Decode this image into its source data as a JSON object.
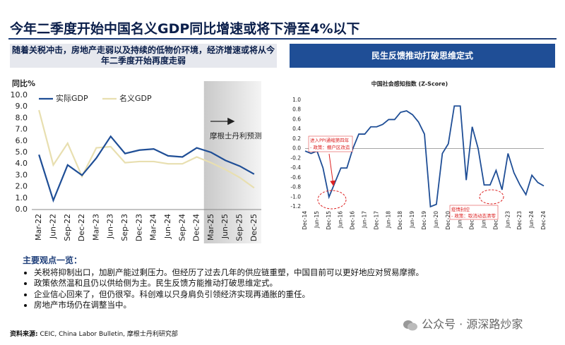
{
  "header": {
    "title": "今年二季度开始中国名义GDP同比增速或将下滑至4%以下"
  },
  "panels": {
    "left": "随着关税冲击，房地产走弱以及持续的低物价环境，经济增速或将从今年二季度开始再度走弱",
    "right": "民生反馈推动打破思维定式"
  },
  "chart_data": [
    {
      "type": "line",
      "ylabel": "同比%",
      "categories": [
        "Mar-22",
        "Jun-22",
        "Sep-22",
        "Dec-22",
        "Mar-23",
        "Jun-23",
        "Sep-23",
        "Dec-23",
        "Mar-24",
        "Jun-24",
        "Sep-24",
        "Dec-24",
        "Mar-25",
        "Jun-25",
        "Sep-25",
        "Dec-25"
      ],
      "series": [
        {
          "name": "实际GDP",
          "color": "#1f4e96",
          "values": [
            4.8,
            0.8,
            3.9,
            3.0,
            4.5,
            6.4,
            4.9,
            5.2,
            5.3,
            4.7,
            4.6,
            5.4,
            5.0,
            4.3,
            3.8,
            3.1
          ]
        },
        {
          "name": "名义GDP",
          "color": "#e8dfb0",
          "values": [
            8.7,
            3.9,
            5.8,
            2.9,
            5.4,
            5.5,
            4.1,
            4.2,
            4.2,
            4.0,
            4.0,
            4.6,
            4.1,
            3.5,
            2.8,
            1.9
          ]
        }
      ],
      "ylim": [
        0,
        10
      ],
      "yticks": [
        {
          "value": 0,
          "label": "0.0"
        },
        {
          "value": 1,
          "label": "1.0"
        },
        {
          "value": 2,
          "label": "2.0"
        },
        {
          "value": 3,
          "label": "3.0"
        },
        {
          "value": 4,
          "label": "4.0"
        },
        {
          "value": 5,
          "label": "5.0"
        },
        {
          "value": 6,
          "label": "6.0"
        },
        {
          "value": 7,
          "label": "7.0"
        },
        {
          "value": 8,
          "label": "8.0"
        },
        {
          "value": 9,
          "label": "9.0"
        },
        {
          "value": 10,
          "label": "10.0"
        }
      ],
      "shaded_from": "Mar-25",
      "annotations": [
        "摩根士丹利预测"
      ],
      "legend": "top-left"
    },
    {
      "type": "line",
      "title": "中国社会感知指数 (Z-Score)",
      "categories": [
        "Dec-14",
        null,
        "Jun-15",
        null,
        "Dec-15",
        null,
        "Jun-16",
        null,
        "Dec-16",
        null,
        "Jun-17",
        null,
        "Dec-17",
        null,
        "Jun-18",
        null,
        "Dec-18",
        null,
        "Jun-19",
        null,
        "Dec-19",
        null,
        "Jun-20",
        null,
        "Dec-20",
        null,
        "Jun-21",
        null,
        "Dec-21",
        null,
        "Jun-22",
        null,
        "Dec-22",
        null,
        "Jun-23",
        null,
        "Dec-23",
        null,
        "Jun-24",
        null,
        "Dec-24"
      ],
      "values": [
        -0.05,
        -0.1,
        -0.05,
        -0.4,
        -1.0,
        -0.7,
        -0.4,
        -0.4,
        0.0,
        0.3,
        0.3,
        0.45,
        0.45,
        0.5,
        0.6,
        0.6,
        0.75,
        0.78,
        0.7,
        0.55,
        0.3,
        -1.2,
        -1.15,
        -0.1,
        0.1,
        0.88,
        0.88,
        -0.65,
        0.45,
        0.0,
        -0.75,
        -0.75,
        -0.45,
        -0.85,
        -0.1,
        -0.5,
        -0.75,
        -0.95,
        -0.55,
        -0.7,
        -0.77
      ],
      "color": "#1f4e96",
      "ylim": [
        -1.2,
        1.0
      ],
      "yticks": [
        {
          "value": 1,
          "label": "1.0"
        },
        0.8,
        0.6,
        0.4,
        0.2,
        {
          "value": 0,
          "label": "0.0"
        },
        -0.2,
        -0.4,
        -0.6,
        -0.8,
        {
          "value": -1,
          "label": "-1.0"
        },
        -1.2
      ],
      "zero_line": true,
      "annotations": [
        "进入PPI通缩第四年",
        "- 政策：棚户区改造",
        "疫情封控",
        "- 政策：取消动态清零"
      ]
    }
  ],
  "notes": {
    "title": "主要观点一览：",
    "items": [
      "关税将抑制出口，加剧产能过剩压力。但经历了过去几年的供应链重塑，中国目前可以更好地应对贸易摩擦。",
      "政策依然温和且仍以供给侧为主。民生反馈方能推动打破思维定式。",
      "企业信心回来了，但仍很窄。科创难以只身肩负引领经济实现再通胀的重任。",
      "房地产市场仍在调整当中。"
    ]
  },
  "source": {
    "label": "资料来源:",
    "text": "CEIC, China Labor Bulletin, 摩根士丹利研究部"
  },
  "watermark": "公众号 · 源深路炒家"
}
